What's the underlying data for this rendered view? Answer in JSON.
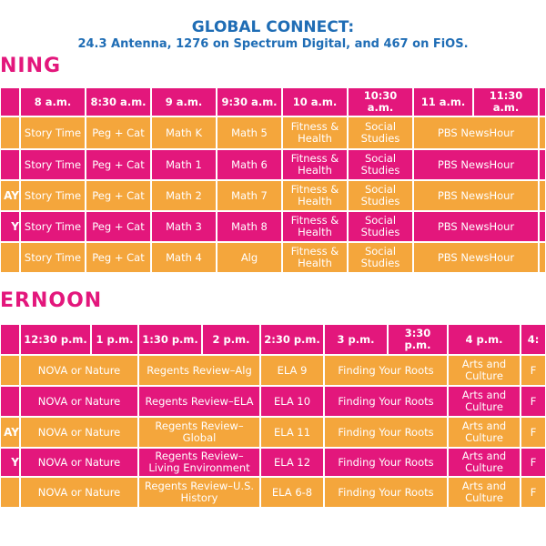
{
  "header": {
    "title": "GLOBAL CONNECT:",
    "subtitle": "24.3 Antenna, 1276 on Spectrum Digital, and 467 on FiOS."
  },
  "morning": {
    "title": "NING",
    "headers": [
      "8 a.m.",
      "8:30 a.m.",
      "9 a.m.",
      "9:30 a.m.",
      "10 a.m.",
      "10:30 a.m.",
      "11 a.m.",
      "11:30 a.m."
    ],
    "rows": [
      {
        "cells": [
          "Story Time",
          "Peg + Cat",
          "Math K",
          "Math 5",
          "Fitness & Health",
          "Social Studies",
          "PBS NewsHour"
        ]
      },
      {
        "cells": [
          "Story Time",
          "Peg + Cat",
          "Math 1",
          "Math 6",
          "Fitness & Health",
          "Social Studies",
          "PBS NewsHour"
        ]
      },
      {
        "label": "AY",
        "cells": [
          "Story Time",
          "Peg + Cat",
          "Math 2",
          "Math 7",
          "Fitness & Health",
          "Social Studies",
          "PBS NewsHour"
        ]
      },
      {
        "label": "Y",
        "cells": [
          "Story Time",
          "Peg + Cat",
          "Math 3",
          "Math 8",
          "Fitness & Health",
          "Social Studies",
          "PBS NewsHour"
        ]
      },
      {
        "cells": [
          "Story Time",
          "Peg + Cat",
          "Math 4",
          "Alg",
          "Fitness & Health",
          "Social Studies",
          "PBS NewsHour"
        ]
      }
    ]
  },
  "afternoon": {
    "title": "ERNOON",
    "headers": [
      "12:30 p.m.",
      "1 p.m.",
      "1:30 p.m.",
      "2 p.m.",
      "2:30 p.m.",
      "3 p.m.",
      "3:30 p.m.",
      "4 p.m.",
      "4:"
    ],
    "rows": [
      {
        "cells": [
          "NOVA or Nature",
          "Regents Review–Alg",
          "ELA 9",
          "Finding Your Roots",
          "Arts and Culture",
          "F"
        ]
      },
      {
        "cells": [
          "NOVA or Nature",
          "Regents Review–ELA",
          "ELA 10",
          "Finding Your Roots",
          "Arts and Culture",
          "F"
        ]
      },
      {
        "label": "AY",
        "cells": [
          "NOVA or Nature",
          "Regents Review–Global",
          "ELA 11",
          "Finding Your Roots",
          "Arts and Culture",
          "F"
        ]
      },
      {
        "label": "Y",
        "cells": [
          "NOVA or Nature",
          "Regents Review–Living Environment",
          "ELA 12",
          "Finding Your Roots",
          "Arts and Culture",
          "F"
        ]
      },
      {
        "cells": [
          "NOVA or Nature",
          "Regents Review–U.S. History",
          "ELA 6-8",
          "Finding Your Roots",
          "Arts and Culture",
          "F"
        ]
      }
    ]
  }
}
